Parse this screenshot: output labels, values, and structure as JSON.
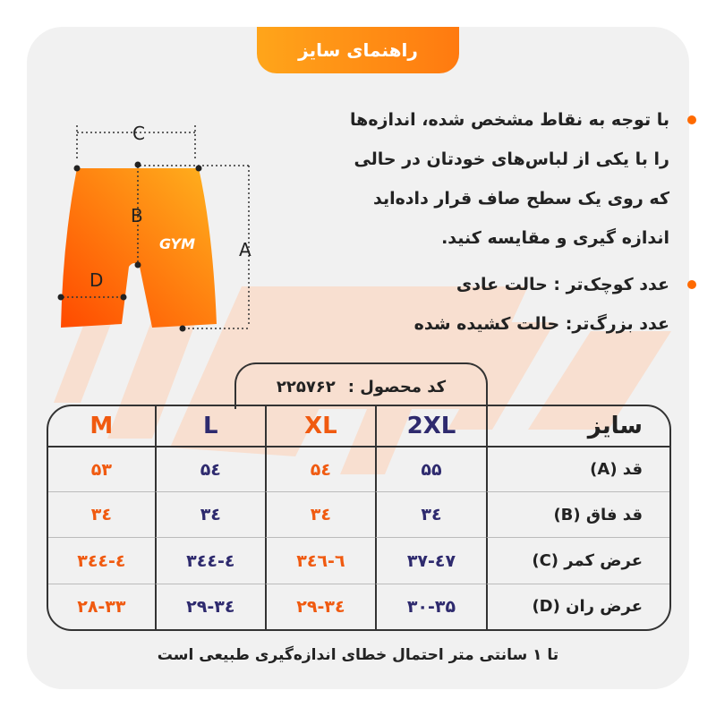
{
  "header": {
    "title": "راهنمای سایز"
  },
  "instructions": [
    {
      "lines": [
        "با توجه به نقاط مشخص شده، اندازه‌ها",
        "را با یکی از لباس‌های خودتان در حالی",
        "که روی یک سطح صاف قرار داده‌اید",
        "اندازه گیری و مقایسه کنید."
      ]
    },
    {
      "lines": [
        "عدد کوچک‌تر : حالت عادی",
        "عدد بزرگ‌تر: حالت کشیده شده"
      ]
    }
  ],
  "diagram": {
    "labels": {
      "c": "C",
      "b": "B",
      "a": "A",
      "d": "D"
    }
  },
  "product_code": {
    "label": "کد محصول :",
    "value": "۲۲۵۷۶۲"
  },
  "table": {
    "header_label": "سایز",
    "sizes": [
      "M",
      "L",
      "XL",
      "2XL"
    ],
    "rows": [
      {
        "label": "قد (A)",
        "values": [
          "۵۳",
          "۵٤",
          "۵٤",
          "۵۵"
        ]
      },
      {
        "label": "قد فاق (B)",
        "values": [
          "۳٤",
          "۳٤",
          "۳٤",
          "۳٤"
        ]
      },
      {
        "label": "عرض کمر (C)",
        "values": [
          "۳٤-٤٤",
          "۳٤-٤٤",
          "۳٦-٤٦",
          "۳۷-٤۷"
        ]
      },
      {
        "label": "عرض ران (D)",
        "values": [
          "۲۸-۳۳",
          "۲۹-۳٤",
          "۲۹-۳٤",
          "۳۰-۳۵"
        ]
      }
    ]
  },
  "footer": {
    "note": "تا ۱ سانتی متر احتمال خطای اندازه‌گیری طبیعی است"
  },
  "colors": {
    "accent": "#f05a10",
    "navy": "#2e2a6e",
    "tab": "#ff8a14"
  }
}
